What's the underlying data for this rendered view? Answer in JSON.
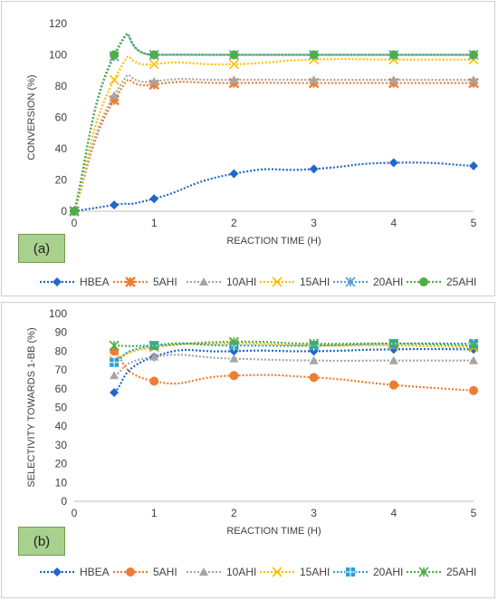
{
  "chart_data": [
    {
      "type": "line",
      "panel_label": "(a)",
      "xlabel": "REACTION TIME (H)",
      "ylabel": "CONVERSION (%)",
      "xlim": [
        0,
        5
      ],
      "ylim": [
        0,
        120
      ],
      "x_ticks": [
        0,
        1,
        2,
        3,
        4,
        5
      ],
      "y_ticks": [
        0,
        20,
        40,
        60,
        80,
        100,
        120
      ],
      "grid": false,
      "legend_position": "bottom",
      "series": [
        {
          "name": "HBEA",
          "color": "#1f68c9",
          "marker": "diamond",
          "x": [
            0,
            0.5,
            1,
            2,
            3,
            4,
            5
          ],
          "values": [
            0,
            4,
            8,
            24,
            27,
            31,
            29
          ]
        },
        {
          "name": "5AHI",
          "color": "#ed7d31",
          "marker": "asterisk",
          "x": [
            0,
            0.5,
            1,
            2,
            3,
            4,
            5
          ],
          "values": [
            0,
            71,
            81,
            82,
            82,
            82,
            82
          ]
        },
        {
          "name": "10AHI",
          "color": "#a5a5a5",
          "marker": "triangle",
          "x": [
            0,
            0.5,
            1,
            2,
            3,
            4,
            5
          ],
          "values": [
            0,
            74,
            83,
            84,
            84,
            84,
            84
          ]
        },
        {
          "name": "15AHI",
          "color": "#ffc000",
          "marker": "x",
          "x": [
            0,
            0.5,
            1,
            2,
            3,
            4,
            5
          ],
          "values": [
            0,
            84,
            94,
            94,
            97,
            97,
            97
          ]
        },
        {
          "name": "20AHI",
          "color": "#5b9bd5",
          "marker": "star",
          "x": [
            0,
            0.5,
            1,
            2,
            3,
            4,
            5
          ],
          "values": [
            0,
            99,
            100,
            100,
            100,
            100,
            100
          ]
        },
        {
          "name": "25AHI",
          "color": "#4eae47",
          "marker": "circle",
          "x": [
            0,
            0.5,
            1,
            2,
            3,
            4,
            5
          ],
          "values": [
            0,
            100,
            100,
            100,
            100,
            100,
            100
          ]
        }
      ]
    },
    {
      "type": "line",
      "panel_label": "(b)",
      "xlabel": "REACTION TIME (H)",
      "ylabel": "SELECTIVITY TOWARDS 1-BB (%)",
      "xlim": [
        0,
        5
      ],
      "ylim": [
        0,
        100
      ],
      "x_ticks": [
        0,
        1,
        2,
        3,
        4,
        5
      ],
      "y_ticks": [
        0,
        10,
        20,
        30,
        40,
        50,
        60,
        70,
        80,
        90,
        100
      ],
      "grid": false,
      "legend_position": "bottom",
      "series": [
        {
          "name": "HBEA",
          "color": "#1f68c9",
          "marker": "diamond",
          "x": [
            0.5,
            1,
            2,
            3,
            4,
            5
          ],
          "values": [
            58,
            77,
            80,
            80,
            81,
            81
          ]
        },
        {
          "name": "5AHI",
          "color": "#ed7d31",
          "marker": "circle",
          "x": [
            0.5,
            1,
            2,
            3,
            4,
            5
          ],
          "values": [
            80,
            64,
            67,
            66,
            62,
            59
          ]
        },
        {
          "name": "10AHI",
          "color": "#a5a5a5",
          "marker": "triangle",
          "x": [
            0.5,
            1,
            2,
            3,
            4,
            5
          ],
          "values": [
            67,
            77,
            76,
            75,
            75,
            75
          ]
        },
        {
          "name": "15AHI",
          "color": "#ffc000",
          "marker": "x",
          "x": [
            0.5,
            1,
            2,
            3,
            4,
            5
          ],
          "values": [
            75,
            82,
            84,
            83,
            83,
            82
          ]
        },
        {
          "name": "20AHI",
          "color": "#2e9fd8",
          "marker": "square-star",
          "x": [
            0.5,
            1,
            2,
            3,
            4,
            5
          ],
          "values": [
            74,
            83,
            83,
            83,
            84,
            84
          ]
        },
        {
          "name": "25AHI",
          "color": "#4eae47",
          "marker": "star",
          "x": [
            0.5,
            1,
            2,
            3,
            4,
            5
          ],
          "values": [
            83,
            83,
            85,
            84,
            84,
            83
          ]
        }
      ]
    }
  ]
}
